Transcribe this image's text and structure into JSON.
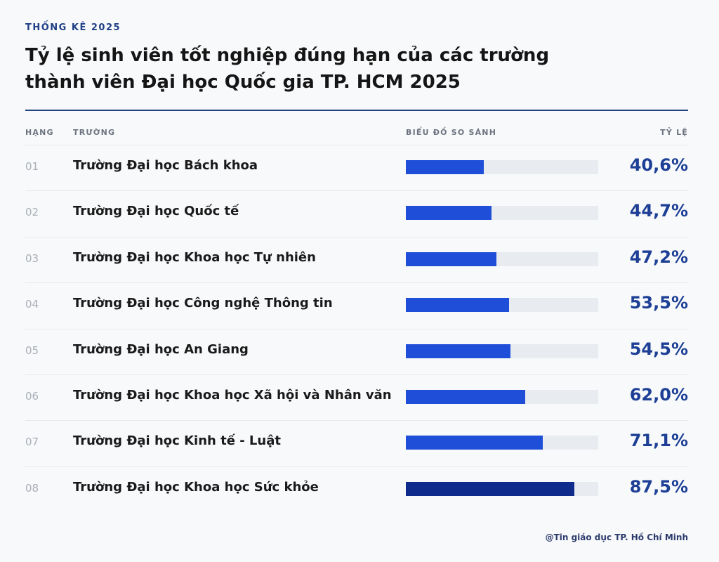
{
  "header": {
    "kicker": "THỐNG KÊ 2025",
    "title": "Tỷ lệ sinh viên tốt nghiệp đúng hạn của các trường thành viên Đại học Quốc gia TP. HCM 2025"
  },
  "columns": {
    "rank": "HẠNG",
    "school": "TRƯỜNG",
    "chart": "BIỂU ĐỒ SO SÁNH",
    "rate": "TỶ LỆ"
  },
  "footer": {
    "source": "@Tin giáo dục TP. Hồ Chí Minh"
  },
  "colors": {
    "bar": "#1f4fd8",
    "bar_highlight": "#0f2b8c",
    "track": "#e8ebf0",
    "rate_text": "#1d3f95"
  },
  "chart_data": {
    "type": "bar",
    "orientation": "horizontal",
    "ylim": [
      0,
      100
    ],
    "rows": [
      {
        "rank": "01",
        "school": "Trường Đại học Bách khoa",
        "value": 40.6,
        "label": "40,6%"
      },
      {
        "rank": "02",
        "school": "Trường Đại học Quốc tế",
        "value": 44.7,
        "label": "44,7%"
      },
      {
        "rank": "03",
        "school": "Trường Đại học Khoa học Tự nhiên",
        "value": 47.2,
        "label": "47,2%"
      },
      {
        "rank": "04",
        "school": "Trường Đại học Công nghệ Thông tin",
        "value": 53.5,
        "label": "53,5%"
      },
      {
        "rank": "05",
        "school": "Trường Đại học An Giang",
        "value": 54.5,
        "label": "54,5%"
      },
      {
        "rank": "06",
        "school": "Trường Đại học Khoa học Xã hội và Nhân văn",
        "value": 62.0,
        "label": "62,0%"
      },
      {
        "rank": "07",
        "school": "Trường Đại học Kinh tế - Luật",
        "value": 71.1,
        "label": "71,1%"
      },
      {
        "rank": "08",
        "school": "Trường Đại học Khoa học Sức khỏe",
        "value": 87.5,
        "label": "87,5%"
      }
    ]
  }
}
